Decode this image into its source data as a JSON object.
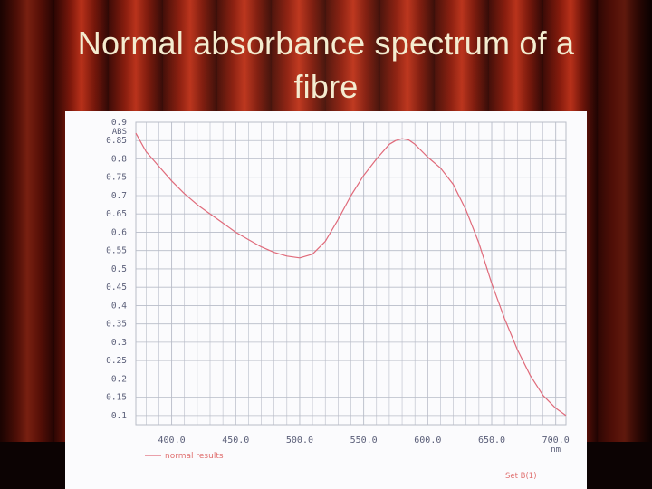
{
  "slide": {
    "title": "Normal absorbance spectrum of a fibre"
  },
  "colors": {
    "curtain": "#8a1a0c",
    "title_text": "#f4ecd0",
    "grid": "#b8bcc8",
    "trace": "#e06a7a",
    "axis_text": "#5a5e78",
    "footer_text": "#e07070"
  },
  "chart_data": {
    "type": "line",
    "title": "",
    "ylabel": "ABS",
    "xlabel": "nm",
    "xlim": [
      372,
      708
    ],
    "ylim": [
      0.075,
      0.9
    ],
    "y_ticks": [
      "0.9",
      "0.85",
      "0.8",
      "0.75",
      "0.7",
      "0.65",
      "0.6",
      "0.55",
      "0.5",
      "0.45",
      "0.4",
      "0.35",
      "0.3",
      "0.25",
      "0.2",
      "0.15",
      "0.1"
    ],
    "x_ticks": [
      "400.0",
      "450.0",
      "500.0",
      "550.0",
      "600.0",
      "650.0",
      "700.0"
    ],
    "grid": true,
    "legend": "bottom-left",
    "series": [
      {
        "name": "normal results",
        "x": [
          372,
          380,
          390,
          400,
          410,
          420,
          430,
          440,
          450,
          460,
          470,
          480,
          490,
          500,
          510,
          520,
          530,
          540,
          550,
          560,
          570,
          575,
          580,
          585,
          590,
          600,
          610,
          620,
          630,
          640,
          650,
          660,
          670,
          680,
          690,
          700,
          708
        ],
        "y": [
          0.87,
          0.82,
          0.78,
          0.74,
          0.705,
          0.675,
          0.65,
          0.625,
          0.6,
          0.58,
          0.56,
          0.545,
          0.535,
          0.53,
          0.54,
          0.575,
          0.635,
          0.7,
          0.755,
          0.8,
          0.84,
          0.85,
          0.855,
          0.852,
          0.84,
          0.805,
          0.775,
          0.73,
          0.66,
          0.57,
          0.46,
          0.365,
          0.28,
          0.21,
          0.155,
          0.12,
          0.1
        ]
      }
    ]
  },
  "footer_note": "Set B(1)"
}
